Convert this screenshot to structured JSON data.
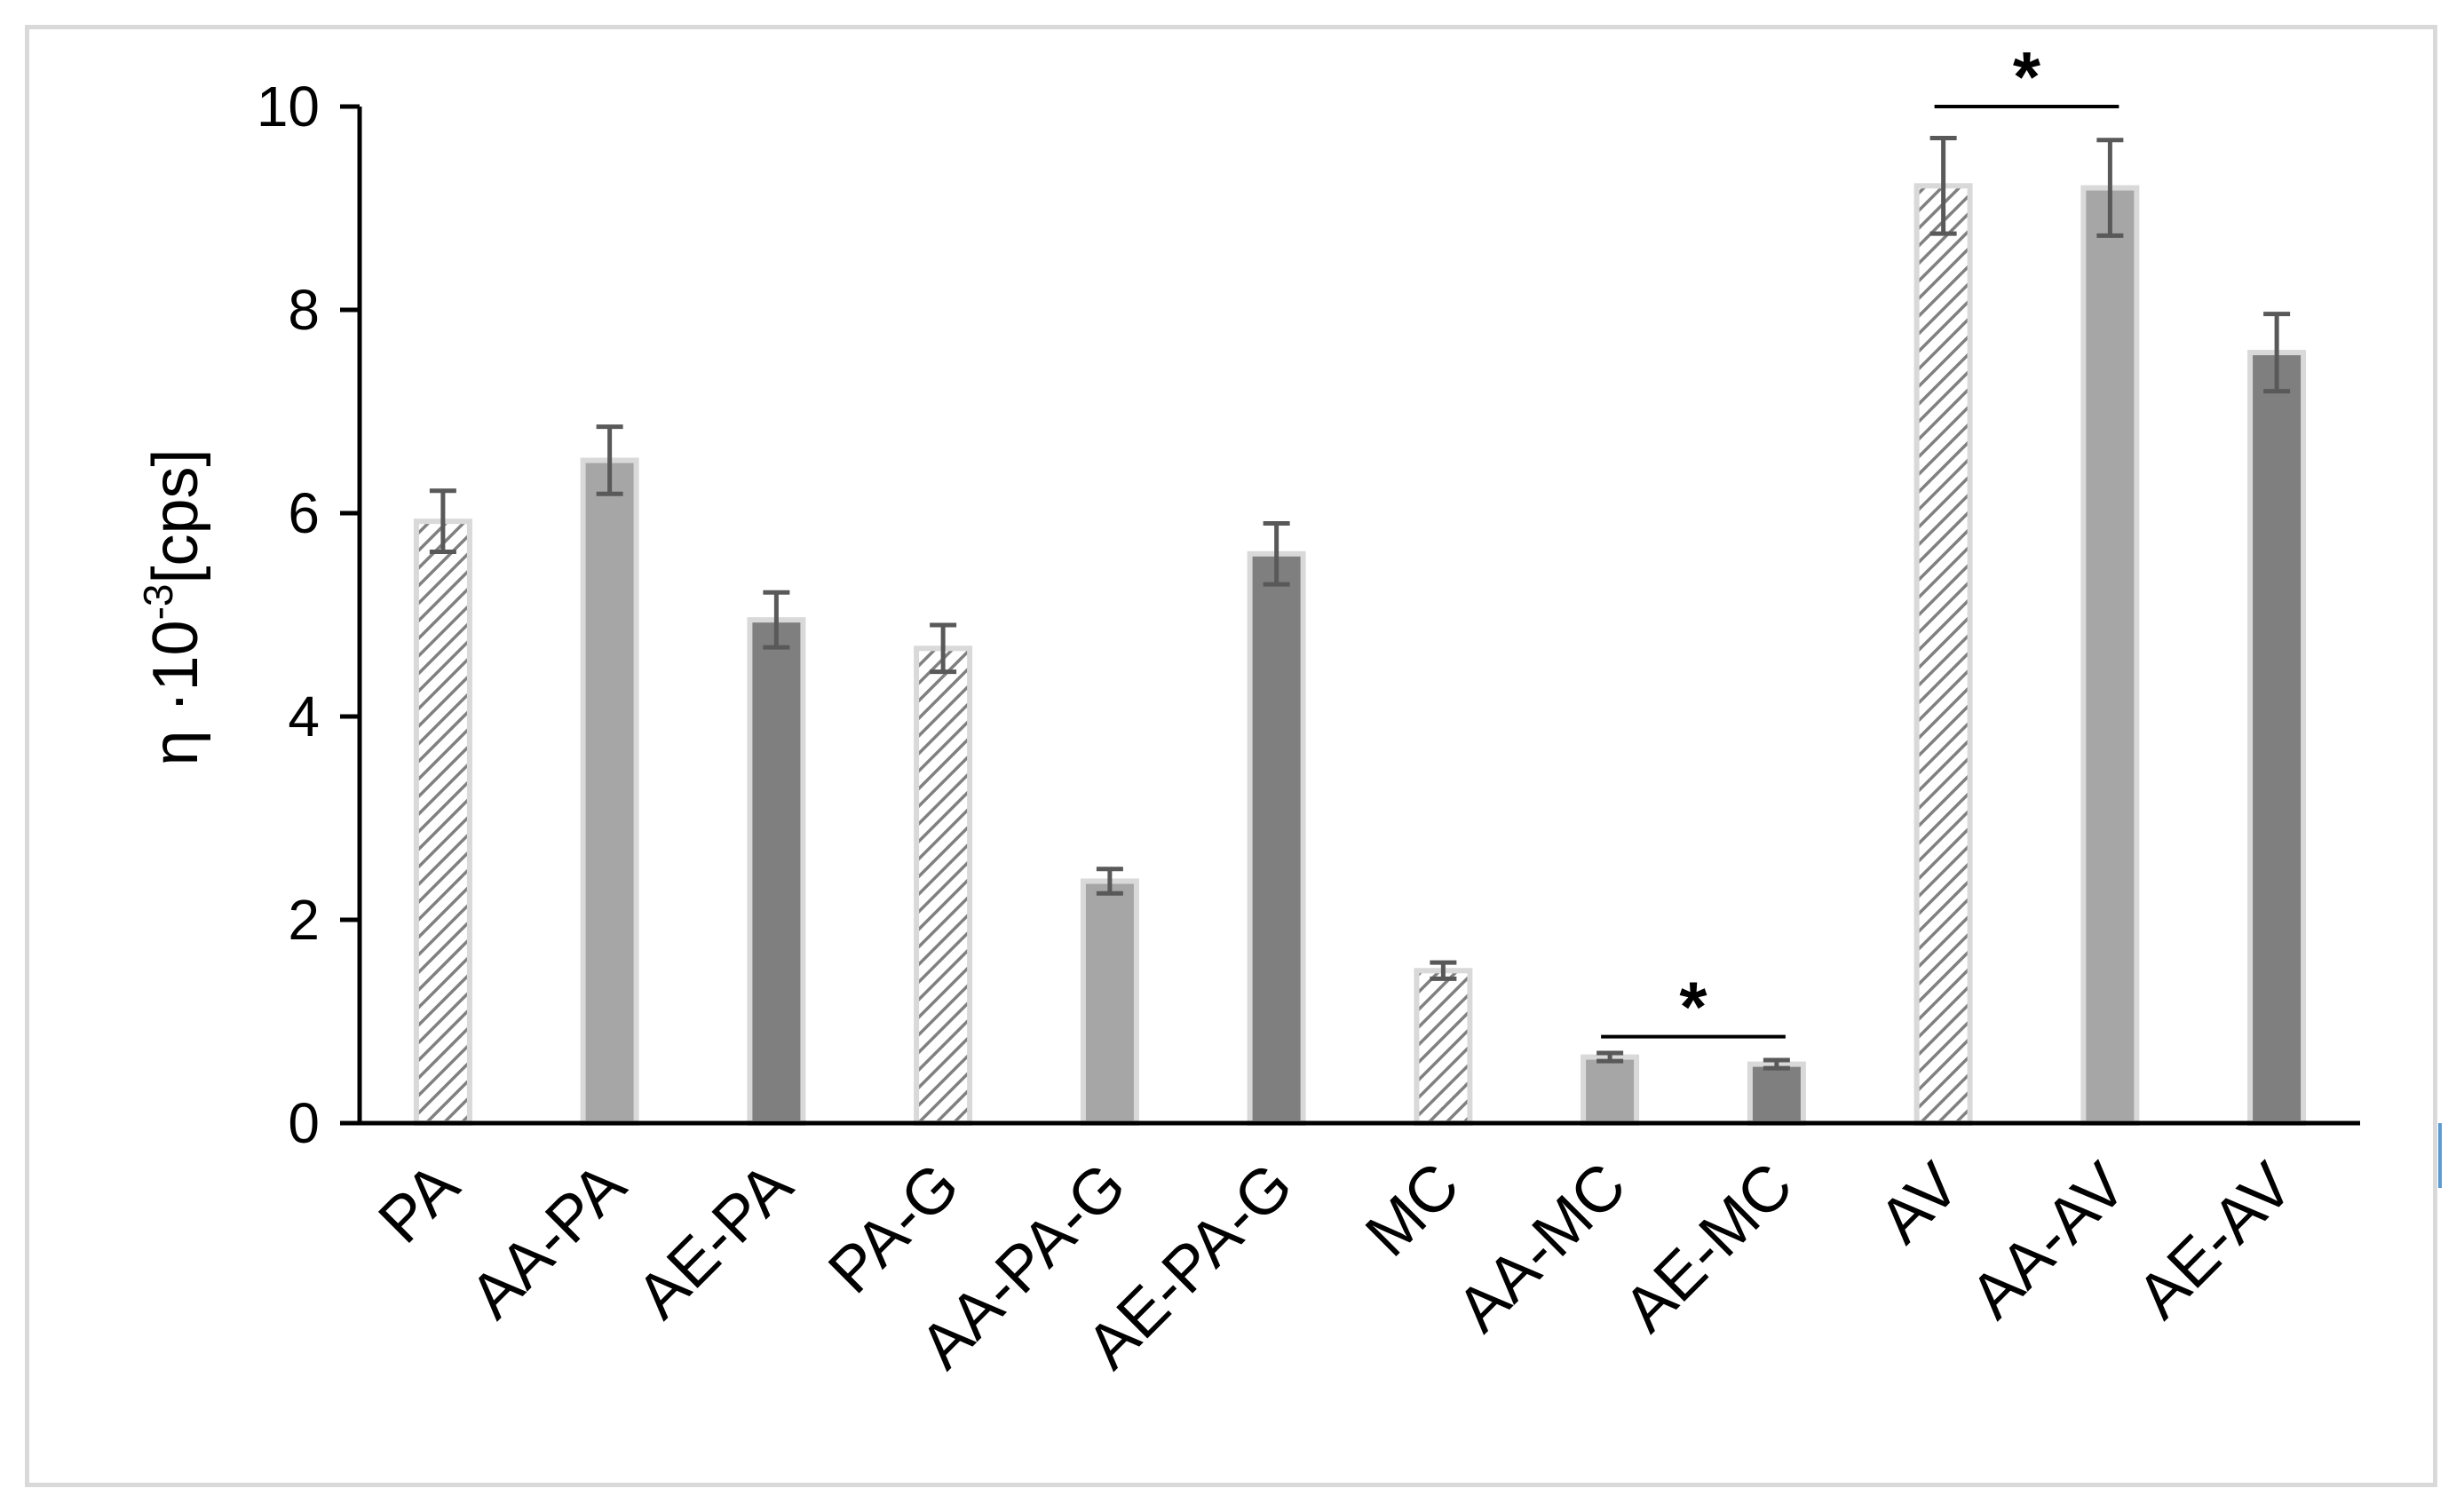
{
  "chart_data": {
    "type": "bar",
    "title": "",
    "ylabel": "η ·10⁻³[cps]",
    "ylabel_parts": {
      "prefix": "η ·10",
      "exponent": "-3",
      "unit": "[cps]"
    },
    "xlabel": "",
    "ylim": [
      0,
      10
    ],
    "yticks": [
      0,
      2,
      4,
      6,
      8,
      10
    ],
    "ytick_labels": [
      "0",
      "2",
      "4",
      "6",
      "8",
      "10"
    ],
    "grid": false,
    "legend": "none",
    "categories": [
      "PA",
      "AA-PA",
      "AE-PA",
      "PA-G",
      "AA-PA-G",
      "AE-PA-G",
      "MC",
      "AA-MC",
      "AE-MC",
      "AV",
      "AA-AV",
      "AE-AV"
    ],
    "values": [
      5.92,
      6.52,
      4.95,
      4.67,
      2.38,
      5.6,
      1.5,
      0.65,
      0.58,
      9.22,
      9.2,
      7.58
    ],
    "errors": [
      0.3,
      0.33,
      0.27,
      0.23,
      0.12,
      0.3,
      0.08,
      0.04,
      0.04,
      0.47,
      0.47,
      0.38
    ],
    "styles": [
      "hatched",
      "light",
      "dark",
      "hatched",
      "light",
      "dark",
      "hatched",
      "light",
      "dark",
      "hatched",
      "light",
      "dark"
    ],
    "significance": [
      {
        "from": "AA-MC",
        "to": "AE-MC",
        "y": 0.85,
        "label": "*"
      },
      {
        "from": "AV",
        "to": "AA-AV",
        "y": 10.0,
        "label": "*"
      }
    ]
  },
  "colors": {
    "light_bar": "#a6a6a6",
    "dark_bar": "#7f7f7f",
    "hatch_bg": "#ffffff",
    "hatch_line": "#808080",
    "bar_outline": "#d9d9d9",
    "error_bar": "#595959",
    "axis": "#000000"
  }
}
